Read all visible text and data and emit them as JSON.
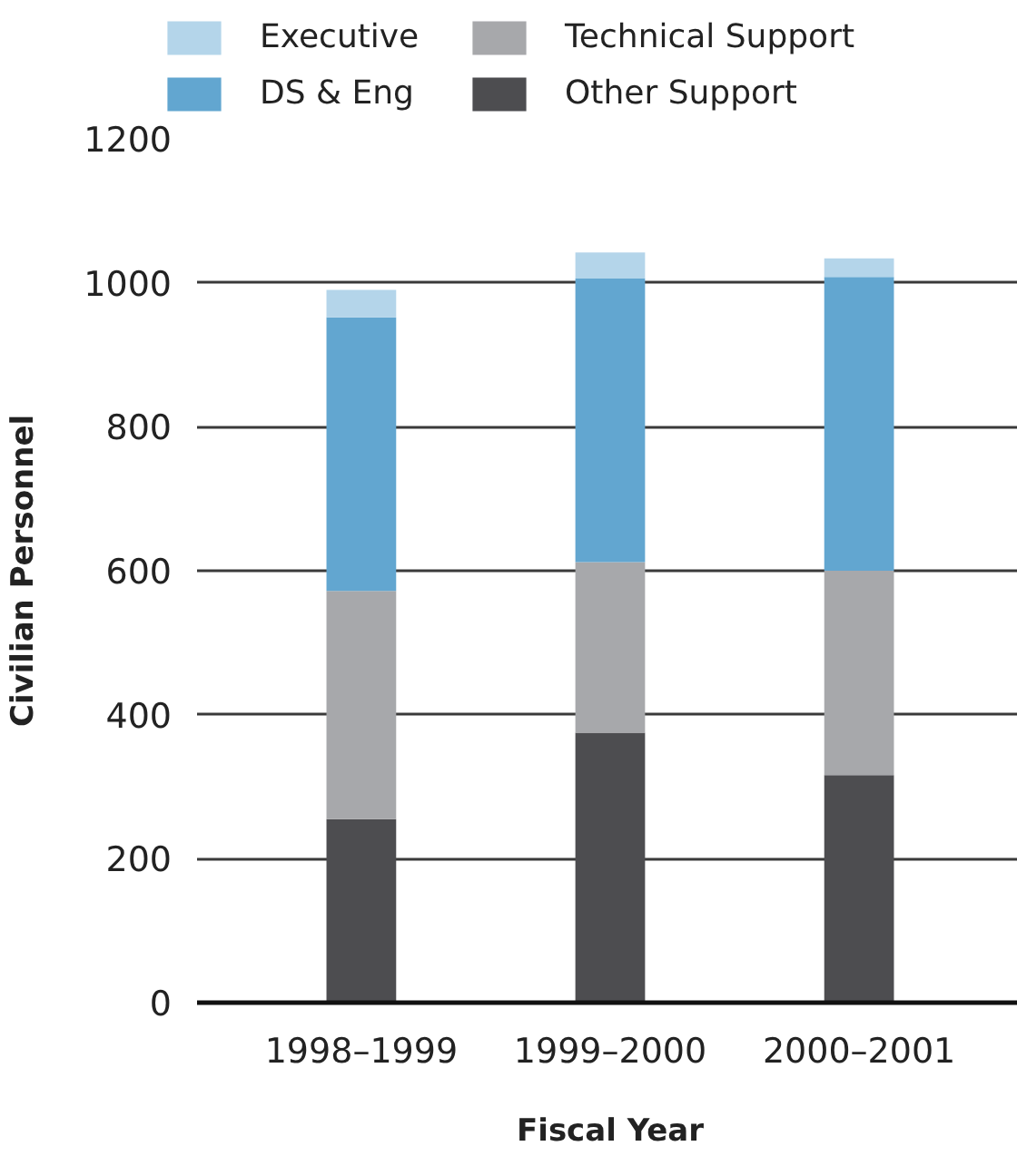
{
  "chart_data": {
    "type": "bar",
    "stacked": true,
    "xlabel": "Fiscal Year",
    "ylabel": "Civilian Personnel",
    "categories": [
      "1998–1999",
      "1999–2000",
      "2000–2001"
    ],
    "series": [
      {
        "name": "Other Support",
        "color": "#4d4d50",
        "values": [
          255,
          375,
          316
        ]
      },
      {
        "name": "Technical Support",
        "color": "#a7a8ab",
        "values": [
          317,
          237,
          284
        ]
      },
      {
        "name": "DS & Eng",
        "color": "#62a6d0",
        "values": [
          380,
          394,
          408
        ]
      },
      {
        "name": "Executive",
        "color": "#b4d5ea",
        "values": [
          38,
          36,
          26
        ]
      }
    ],
    "ylim": [
      0,
      1200
    ],
    "yticks": [
      0,
      200,
      400,
      600,
      800,
      1000,
      1200
    ],
    "grid": "y",
    "legend": "top"
  }
}
